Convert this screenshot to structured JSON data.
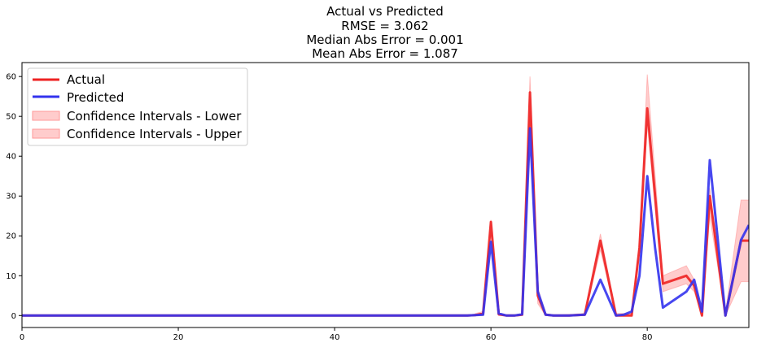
{
  "chart_data": {
    "type": "line",
    "title_lines": [
      "Actual vs Predicted",
      "RMSE = 3.062",
      "Median Abs Error = 0.001",
      "Mean Abs Error = 1.087"
    ],
    "xlabel": "",
    "ylabel": "",
    "xlim": [
      0,
      93
    ],
    "ylim": [
      -3,
      63.5
    ],
    "xticks": [
      0,
      20,
      40,
      60,
      80
    ],
    "yticks": [
      0,
      10,
      20,
      30,
      40,
      50,
      60
    ],
    "grid": false,
    "legend_position": "upper-left",
    "legend": [
      "Actual",
      "Predicted",
      "Confidence Intervals - Lower",
      "Confidence Intervals - Upper"
    ],
    "series": [
      {
        "name": "Actual",
        "color": "#ee2222",
        "points": [
          [
            0,
            0
          ],
          [
            10,
            0
          ],
          [
            20,
            0
          ],
          [
            30,
            0
          ],
          [
            40,
            0
          ],
          [
            50,
            0
          ],
          [
            57,
            0
          ],
          [
            58,
            0.1
          ],
          [
            59,
            0.5
          ],
          [
            60,
            23.5
          ],
          [
            61,
            0.3
          ],
          [
            62,
            0
          ],
          [
            63,
            0
          ],
          [
            64,
            0.2
          ],
          [
            65,
            56
          ],
          [
            66,
            5
          ],
          [
            67,
            0.2
          ],
          [
            68,
            0
          ],
          [
            70,
            0
          ],
          [
            72,
            0.2
          ],
          [
            74,
            18.8
          ],
          [
            76,
            0
          ],
          [
            78,
            0
          ],
          [
            79,
            17
          ],
          [
            80,
            52
          ],
          [
            82,
            8
          ],
          [
            85,
            10
          ],
          [
            86,
            7.5
          ],
          [
            87,
            0
          ],
          [
            88,
            30
          ],
          [
            90,
            0
          ],
          [
            92,
            18.8
          ],
          [
            93,
            18.8
          ]
        ]
      },
      {
        "name": "Predicted",
        "color": "#3333ee",
        "points": [
          [
            0,
            0
          ],
          [
            10,
            0
          ],
          [
            20,
            0
          ],
          [
            30,
            0
          ],
          [
            40,
            0
          ],
          [
            50,
            0
          ],
          [
            57,
            0
          ],
          [
            58,
            0.1
          ],
          [
            59,
            0.2
          ],
          [
            60,
            18.5
          ],
          [
            61,
            0.5
          ],
          [
            62,
            0
          ],
          [
            63,
            0
          ],
          [
            64,
            0.3
          ],
          [
            65,
            47
          ],
          [
            66,
            6
          ],
          [
            67,
            0.2
          ],
          [
            68,
            0
          ],
          [
            70,
            0
          ],
          [
            72,
            0.2
          ],
          [
            74,
            9
          ],
          [
            76,
            0
          ],
          [
            77,
            0.2
          ],
          [
            78,
            1
          ],
          [
            79,
            10
          ],
          [
            80,
            35
          ],
          [
            81,
            17
          ],
          [
            82,
            2
          ],
          [
            85,
            6
          ],
          [
            86,
            9
          ],
          [
            87,
            1
          ],
          [
            88,
            39
          ],
          [
            90,
            0
          ],
          [
            92,
            19
          ],
          [
            93,
            22.7
          ]
        ]
      }
    ],
    "confidence_band": {
      "color": "#ff9999",
      "x": [
        58,
        59,
        60,
        61,
        62,
        63,
        64,
        65,
        66,
        67,
        68,
        72,
        74,
        76,
        78,
        79,
        80,
        82,
        85,
        86,
        87,
        88,
        90,
        92,
        93
      ],
      "lower": [
        0,
        0,
        21,
        0,
        0,
        0,
        0,
        52,
        3,
        0,
        0,
        0,
        16.5,
        0,
        0,
        16,
        48,
        6,
        8,
        6,
        0,
        25,
        0,
        8.5,
        8.5
      ],
      "upper": [
        0.5,
        1,
        24,
        0.5,
        0,
        0,
        0.5,
        60,
        7,
        0.5,
        0,
        0.5,
        20.5,
        0.5,
        0.5,
        18,
        60.5,
        10,
        12.5,
        9,
        0.5,
        32,
        0.5,
        29,
        29
      ]
    }
  }
}
